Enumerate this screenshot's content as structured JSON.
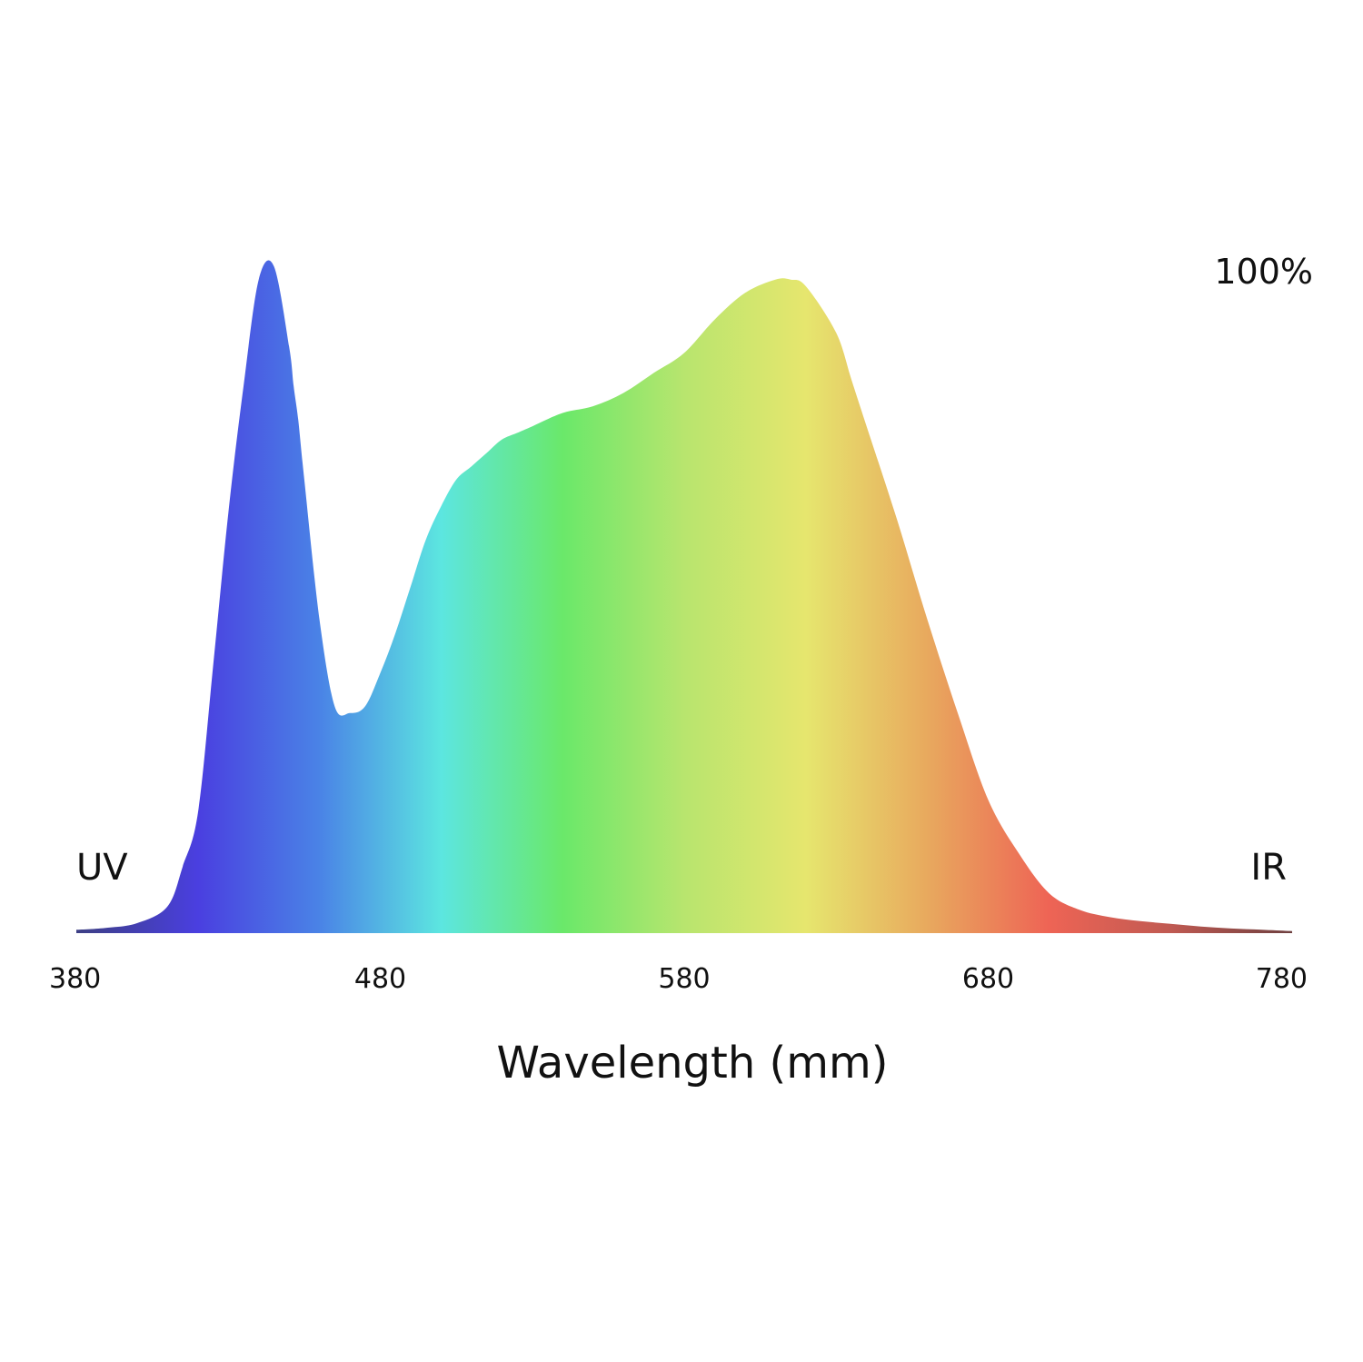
{
  "chart_data": {
    "type": "area",
    "xlabel": "Wavelength (mm)",
    "ylabel": "",
    "xlim": [
      380,
      780
    ],
    "ylim": [
      0,
      100
    ],
    "x_ticks": [
      "380",
      "480",
      "580",
      "680",
      "780"
    ],
    "y_max_label": "100%",
    "left_label": "UV",
    "right_label": "IR",
    "grid": false,
    "legend": "none",
    "series": [
      {
        "x": [
          380,
          390,
          400,
          410,
          415,
          420,
          425,
          430,
          435,
          440,
          445,
          450,
          451.5,
          453,
          455,
          460,
          465,
          470,
          475,
          480,
          485,
          490,
          495,
          500,
          505,
          510,
          515,
          520,
          525,
          530,
          540,
          550,
          560,
          570,
          580,
          590,
          600,
          610,
          615,
          620,
          630,
          635,
          640,
          650,
          660,
          670,
          680,
          690,
          700,
          710,
          720,
          730,
          740,
          750,
          760,
          770,
          780
        ],
        "y": [
          0.5,
          0.8,
          1.5,
          4,
          10,
          18,
          40,
          63,
          82,
          98,
          100,
          88,
          82,
          77,
          68,
          47,
          34,
          33,
          34,
          39,
          45,
          52,
          59,
          64,
          68,
          70,
          72,
          74,
          75,
          76,
          78,
          79,
          81,
          84,
          87,
          92,
          96,
          98,
          98,
          97,
          90,
          83,
          76,
          62,
          47,
          33,
          20,
          12,
          6,
          3.5,
          2.4,
          1.8,
          1.4,
          1.0,
          0.7,
          0.5,
          0.3
        ]
      }
    ],
    "gradient_colors": [
      "#3d3f84",
      "#4a3fe0",
      "#4a83e6",
      "#5ce6e0",
      "#6ae86a",
      "#b8e56e",
      "#e6e66e",
      "#e8a95e",
      "#ee6455",
      "#c05a52",
      "#6e3f3f"
    ]
  }
}
